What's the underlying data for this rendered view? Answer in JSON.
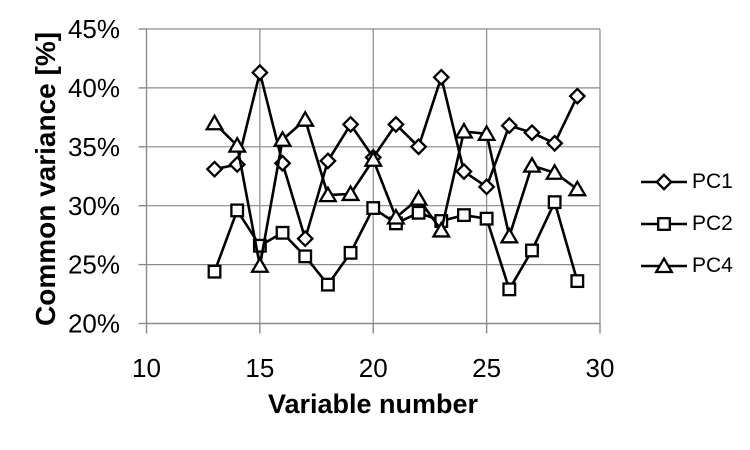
{
  "chart_data": {
    "type": "line",
    "title": "",
    "xlabel": "Variable number",
    "ylabel": "Common variance [%]",
    "xlim": [
      10,
      30
    ],
    "ylim": [
      20,
      45
    ],
    "grid": true,
    "legend_position": "right",
    "x_tick_values": [
      10,
      15,
      20,
      25,
      30
    ],
    "x_tick_labels": [
      "10",
      "15",
      "20",
      "25",
      "30"
    ],
    "y_tick_values": [
      45,
      40,
      35,
      30,
      25,
      20
    ],
    "y_tick_labels": [
      "45%",
      "40%",
      "35%",
      "30%",
      "25%",
      "20%"
    ],
    "x": [
      13,
      14,
      15,
      16,
      17,
      18,
      19,
      20,
      21,
      22,
      23,
      24,
      25,
      26,
      27,
      28,
      29
    ],
    "series": [
      {
        "name": "PC1",
        "marker": "diamond",
        "values": [
          33.1,
          33.5,
          41.3,
          33.6,
          27.2,
          33.8,
          36.9,
          34.1,
          36.9,
          35.0,
          40.9,
          32.9,
          31.6,
          36.8,
          36.2,
          35.3,
          39.3
        ]
      },
      {
        "name": "PC2",
        "marker": "square",
        "values": [
          24.4,
          29.6,
          26.6,
          27.7,
          25.7,
          23.3,
          26.0,
          29.8,
          28.5,
          29.4,
          28.7,
          29.2,
          28.9,
          22.9,
          26.2,
          30.3,
          23.6
        ]
      },
      {
        "name": "PC4",
        "marker": "triangle",
        "values": [
          37.0,
          35.1,
          24.9,
          35.6,
          37.3,
          30.9,
          31.0,
          33.9,
          29.0,
          30.6,
          27.9,
          36.3,
          36.1,
          27.4,
          33.4,
          32.8,
          31.4
        ]
      }
    ],
    "colors": {
      "line": "#000000",
      "marker_fill": "#ffffff",
      "grid": "#8a8a8a",
      "axis": "#8a8a8a",
      "text": "#000000"
    }
  }
}
